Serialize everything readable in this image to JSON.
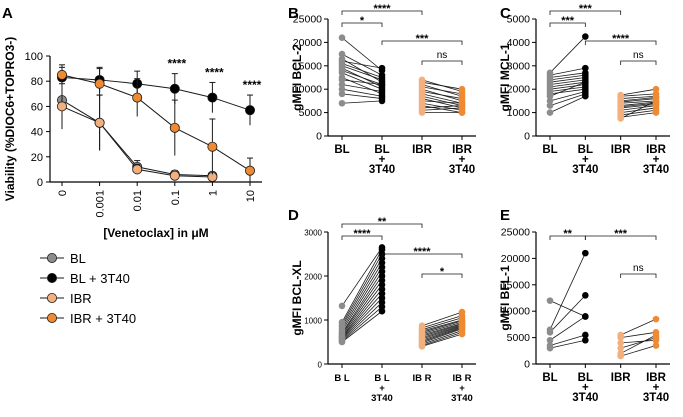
{
  "colors": {
    "axis": "#000000",
    "bl": "#8c8c8c",
    "bl3t40": "#000000",
    "ibr": "#f2b07e",
    "ibr3t40": "#ef8a32",
    "line": "#1a1a1a",
    "text": "#000000"
  },
  "chart_data": [
    {
      "panel": "A",
      "type": "line",
      "ylabel": "Viability (%DIOC6+TOPRO3-)",
      "xlabel": "[Venetoclax] in μM",
      "categories": [
        "0",
        "0.001",
        "0.01",
        "0.1",
        "1",
        "10"
      ],
      "ylim": [
        0,
        100
      ],
      "yticks": [
        0,
        20,
        40,
        60,
        80,
        100
      ],
      "series": [
        {
          "name": "BL",
          "color_key": "bl",
          "values": [
            65,
            47,
            12,
            6,
            5,
            null
          ],
          "err": [
            20,
            22,
            5,
            3,
            2,
            null
          ]
        },
        {
          "name": "BL + 3T40",
          "color_key": "bl3t40",
          "values": [
            83,
            81,
            78,
            74,
            67,
            57
          ],
          "err": [
            8,
            10,
            10,
            12,
            12,
            12
          ]
        },
        {
          "name": "IBR",
          "color_key": "ibr",
          "values": [
            60,
            47,
            10,
            5,
            4,
            null
          ],
          "err": [
            18,
            22,
            4,
            2,
            2,
            null
          ]
        },
        {
          "name": "IBR + 3T40",
          "color_key": "ibr3t40",
          "values": [
            85,
            78,
            67,
            43,
            28,
            9
          ],
          "err": [
            8,
            12,
            15,
            22,
            22,
            10
          ]
        }
      ],
      "significance": [
        {
          "index": 3,
          "label": "****"
        },
        {
          "index": 4,
          "label": "****"
        },
        {
          "index": 5,
          "label": "****"
        }
      ],
      "legend": [
        "BL",
        "BL + 3T40",
        "IBR",
        "IBR + 3T40"
      ]
    },
    {
      "panel": "B",
      "type": "scatter",
      "ylabel": "gMFI BCL-2",
      "ylim": [
        0,
        25000
      ],
      "yticks": [
        0,
        5000,
        10000,
        15000,
        20000,
        25000
      ],
      "categories": [
        "BL",
        "BL\n+\n3T40",
        "IBR",
        "IBR\n+\n3T40"
      ],
      "pairs": [
        [
          [
            21000,
            14000
          ],
          [
            17500,
            13000
          ],
          [
            16500,
            11500
          ],
          [
            16000,
            14500
          ],
          [
            15500,
            12500
          ],
          [
            15000,
            12000
          ],
          [
            14500,
            10500
          ],
          [
            14000,
            11000
          ],
          [
            13500,
            10000
          ],
          [
            12500,
            9000
          ],
          [
            12000,
            11000
          ],
          [
            11000,
            9500
          ],
          [
            10000,
            8500
          ],
          [
            9000,
            8000
          ],
          [
            7000,
            7500
          ]
        ],
        [
          [
            12000,
            9500
          ],
          [
            11500,
            10000
          ],
          [
            11000,
            8500
          ],
          [
            10500,
            9000
          ],
          [
            10000,
            7500
          ],
          [
            9500,
            8000
          ],
          [
            9000,
            7000
          ],
          [
            8500,
            6500
          ],
          [
            8000,
            6000
          ],
          [
            7500,
            7000
          ],
          [
            7000,
            5500
          ],
          [
            6500,
            5000
          ],
          [
            6000,
            6500
          ],
          [
            5500,
            6000
          ],
          [
            5000,
            5000
          ]
        ]
      ],
      "brackets": [
        {
          "from": 0,
          "to": 1,
          "level": 0,
          "label": "*"
        },
        {
          "from": 0,
          "to": 2,
          "level": 1,
          "label": "****"
        },
        {
          "from": 1,
          "to": 3,
          "level": -1,
          "label": "***"
        },
        {
          "from": 2,
          "to": 3,
          "level": -2,
          "label": "ns"
        }
      ]
    },
    {
      "panel": "C",
      "type": "scatter",
      "ylabel": "gMFI MCL-1",
      "ylim": [
        0,
        5000
      ],
      "yticks": [
        0,
        1000,
        2000,
        3000,
        4000,
        5000
      ],
      "categories": [
        "BL",
        "BL\n+\n3T40",
        "IBR",
        "IBR\n+\n3T40"
      ],
      "pairs": [
        [
          [
            2700,
            4250
          ],
          [
            2600,
            2900
          ],
          [
            2500,
            2700
          ],
          [
            2400,
            2600
          ],
          [
            2300,
            2500
          ],
          [
            2200,
            2400
          ],
          [
            2100,
            2300
          ],
          [
            2000,
            2200
          ],
          [
            1900,
            2100
          ],
          [
            1800,
            2000
          ],
          [
            1700,
            2300
          ],
          [
            1500,
            1900
          ],
          [
            1300,
            1800
          ],
          [
            1000,
            1700
          ]
        ],
        [
          [
            1750,
            2000
          ],
          [
            1700,
            1800
          ],
          [
            1600,
            1700
          ],
          [
            1500,
            1650
          ],
          [
            1450,
            1600
          ],
          [
            1400,
            1500
          ],
          [
            1300,
            1450
          ],
          [
            1250,
            1400
          ],
          [
            1200,
            1350
          ],
          [
            1100,
            1300
          ],
          [
            1000,
            1200
          ],
          [
            900,
            1100
          ],
          [
            800,
            1000
          ],
          [
            750,
            1500
          ]
        ]
      ],
      "brackets": [
        {
          "from": 0,
          "to": 1,
          "level": 0,
          "label": "***"
        },
        {
          "from": 0,
          "to": 2,
          "level": 1,
          "label": "***"
        },
        {
          "from": 1,
          "to": 3,
          "level": -1,
          "label": "****"
        },
        {
          "from": 2,
          "to": 3,
          "level": -2,
          "label": "ns"
        }
      ]
    },
    {
      "panel": "D",
      "type": "scatter",
      "ylabel": "gMFI BCL-XL",
      "ylim": [
        0,
        3000
      ],
      "yticks": [
        0,
        1000,
        2000,
        3000
      ],
      "categories": [
        "B L",
        "B L\n+\n3T40",
        "IB R",
        "IB R\n+\n3T40"
      ],
      "pairs": [
        [
          [
            1320,
            2650
          ],
          [
            950,
            2600
          ],
          [
            900,
            2500
          ],
          [
            850,
            2400
          ],
          [
            800,
            2300
          ],
          [
            750,
            2200
          ],
          [
            700,
            2100
          ],
          [
            680,
            2000
          ],
          [
            650,
            1900
          ],
          [
            620,
            1800
          ],
          [
            600,
            1700
          ],
          [
            580,
            1600
          ],
          [
            560,
            1500
          ],
          [
            540,
            1400
          ],
          [
            520,
            1300
          ],
          [
            500,
            1200
          ]
        ],
        [
          [
            870,
            1180
          ],
          [
            820,
            1100
          ],
          [
            780,
            1050
          ],
          [
            750,
            1000
          ],
          [
            720,
            980
          ],
          [
            690,
            950
          ],
          [
            660,
            920
          ],
          [
            630,
            900
          ],
          [
            600,
            880
          ],
          [
            570,
            860
          ],
          [
            540,
            840
          ],
          [
            510,
            820
          ],
          [
            480,
            800
          ],
          [
            450,
            760
          ],
          [
            420,
            720
          ],
          [
            400,
            680
          ]
        ]
      ],
      "brackets": [
        {
          "from": 0,
          "to": 1,
          "level": 0,
          "label": "****"
        },
        {
          "from": 0,
          "to": 2,
          "level": 1,
          "label": "**"
        },
        {
          "from": 1,
          "to": 3,
          "level": -1,
          "label": "****"
        },
        {
          "from": 2,
          "to": 3,
          "level": -2,
          "label": "*"
        }
      ]
    },
    {
      "panel": "E",
      "type": "scatter",
      "ylabel": "gMFI BFL-1",
      "ylim": [
        0,
        25000
      ],
      "yticks": [
        0,
        5000,
        10000,
        15000,
        20000,
        25000
      ],
      "categories": [
        "BL",
        "BL\n+\n3T40",
        "IBR",
        "IBR\n+\n3T40"
      ],
      "pairs": [
        [
          [
            12000,
            9000
          ],
          [
            6500,
            21000
          ],
          [
            6000,
            13000
          ],
          [
            4500,
            9000
          ],
          [
            3500,
            5500
          ],
          [
            3000,
            4500
          ]
        ],
        [
          [
            5500,
            8500
          ],
          [
            5000,
            6000
          ],
          [
            4000,
            4500
          ],
          [
            3000,
            5000
          ],
          [
            2000,
            5500
          ],
          [
            1500,
            3500
          ]
        ]
      ],
      "brackets": [
        {
          "from": 0,
          "to": 1,
          "level": 0,
          "label": "**"
        },
        {
          "from": 1,
          "to": 3,
          "level": 0,
          "label": "***"
        },
        {
          "from": 2,
          "to": 3,
          "level": -2,
          "label": "ns"
        }
      ]
    }
  ]
}
